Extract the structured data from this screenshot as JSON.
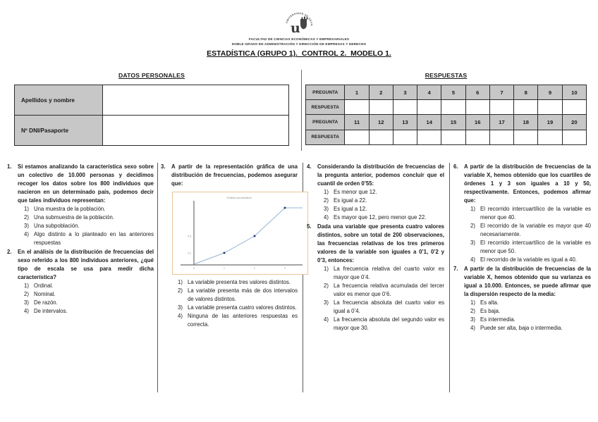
{
  "header": {
    "logo_label": "UNIVERSIDAD DE SEVILLA",
    "faculty_line1": "FACULTAD DE CIENCIAS ECONÓMICAS Y EMPRESARIALES",
    "faculty_line2": "DOBLE GRADO EN ADMINISTRACIÓN Y DIRECCIÓN DE EMPRESAS Y DERECHO",
    "title": "ESTADÍSTICA (GRUPO 1).  CONTROL 2.  MODELO 1."
  },
  "personal_data": {
    "heading": "DATOS PERSONALES",
    "rows": [
      {
        "label": "Apellidos y nombre",
        "value": ""
      },
      {
        "label": "Nº DNI/Pasaporte",
        "value": ""
      }
    ]
  },
  "answers": {
    "heading": "RESPUESTAS",
    "question_label": "PREGUNTA",
    "answer_label": "RESPUESTA",
    "row1": [
      "1",
      "2",
      "3",
      "4",
      "5",
      "6",
      "7",
      "8",
      "9",
      "10"
    ],
    "row2": [
      "11",
      "12",
      "13",
      "14",
      "15",
      "16",
      "17",
      "18",
      "19",
      "20"
    ]
  },
  "option_markers": [
    "1)",
    "2)",
    "3)",
    "4)"
  ],
  "questions": [
    {
      "num": "1.",
      "stem": "Si estamos analizando la característica sexo sobre un colectivo de 10.000 personas y decidimos recoger los datos sobre los 800 individuos que nacieron en un determinado país, podemos decir que tales individuos representan:",
      "options": [
        "Una muestra de la población.",
        "Una submuestra de la población.",
        "Una subpoblación.",
        "Algo distinto a lo planteado en las anteriores respuestas"
      ]
    },
    {
      "num": "2.",
      "stem": "En el análisis de la distribución de frecuencias del sexo referido a los 800 individuos anteriores, ¿qué tipo de escala se usa para medir dicha característica?",
      "options": [
        "Ordinal.",
        "Nominal.",
        "De razón.",
        "De intervalos."
      ]
    },
    {
      "num": "3.",
      "stem": "A partir de la representación gráfica de una distribución de frecuencias, podemos asegurar que:",
      "options": [
        "La variable presenta tres valores distintos.",
        "La variable presenta más de dos intervalos de valores distintos.",
        "La variable presenta cuatro valores distintos.",
        "Ninguna de las anteriores respuestas es correcta."
      ]
    },
    {
      "num": "4.",
      "stem": "Considerando la distribución de frecuencias de la pregunta anterior, podemos concluir que el cuantil de orden 0’55:",
      "options": [
        "Es menor que 12.",
        "Es igual a 22.",
        "Es igual a 12.",
        "Es mayor que 12, pero menor que 22."
      ]
    },
    {
      "num": "5.",
      "stem": "Dada una variable que presenta cuatro valores distintos, sobre un total de 200 observaciones, las frecuencias relativas de los tres primeros valores de la variable son iguales a 0’1, 0’2 y 0’3, entonces:",
      "options": [
        "La frecuencia relativa del cuarto valor es mayor que 0’4.",
        "La frecuencia relativa acumulada del tercer valor es menor que 0’6.",
        "La frecuencia absoluta del cuarto valor es igual a 0’4.",
        "La frecuencia absoluta del segundo valor es mayor que 30."
      ]
    },
    {
      "num": "6.",
      "stem": "A partir de la distribución de frecuencias de la variable X, hemos obtenido que los cuartiles de órdenes 1 y 3 son iguales a 10 y 50, respectivamente. Entonces, podemos afirmar que:",
      "options": [
        "El recorrido intercuartílico de la variable es menor que 40.",
        "El recorrido de la variable es mayor que 40 necesariamente.",
        "El recorrido intercuartílico de la variable es menor que 50.",
        "El recorrido de la variable es igual a 40."
      ]
    },
    {
      "num": "7.",
      "stem": "A partir de la distribución de frecuencias de la variable X, hemos obtenido que su varianza es igual a 10.000. Entonces, se puede afirmar que la dispersión respecto de la media:",
      "options": [
        "Es alta.",
        "Es baja.",
        "Es intermedia.",
        "Puede ser alta, baja o intermedia."
      ]
    }
  ],
  "chart_data": {
    "type": "line",
    "title": "Gráfica acumulativa",
    "points": [
      {
        "x": 0,
        "y": 0
      },
      {
        "x": 1,
        "y": 0.2
      },
      {
        "x": 2,
        "y": 0.5
      },
      {
        "x": 3,
        "y": 1.0
      }
    ],
    "x_ticks": [
      {
        "label": "0",
        "x": 0
      },
      {
        "label": "1",
        "x": 1
      },
      {
        "label": "2",
        "x": 2
      },
      {
        "label": "3",
        "x": 3
      }
    ],
    "y_ticks": [
      {
        "label": "0,2",
        "value": 0.2
      },
      {
        "label": "0,5",
        "value": 0.5
      }
    ],
    "line_color": "#95b3d7",
    "marker_color": "#17375e",
    "axis_color": "#6e6e6e"
  }
}
